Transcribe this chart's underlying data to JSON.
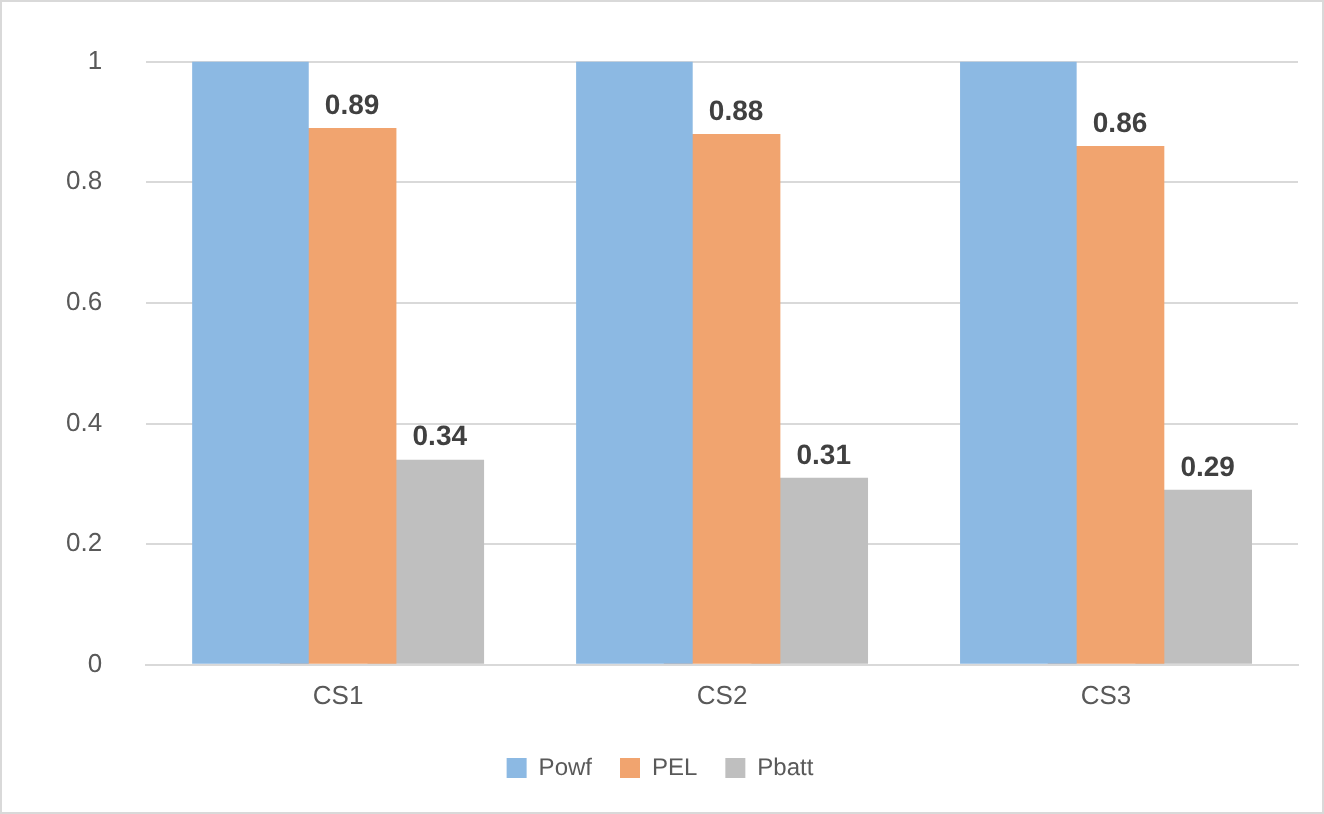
{
  "chart_data": {
    "type": "bar",
    "categories": [
      "CS1",
      "CS2",
      "CS3"
    ],
    "series": [
      {
        "name": "Powf",
        "color": "#8cb9e3",
        "values": [
          1,
          1,
          1
        ]
      },
      {
        "name": "PEL",
        "color": "#f1a46f",
        "values": [
          0.89,
          0.88,
          0.86
        ],
        "value_labels": [
          "0.89",
          "0.88",
          "0.86"
        ]
      },
      {
        "name": "Pbatt",
        "color": "#bfbfbf",
        "values": [
          0.34,
          0.31,
          0.29
        ],
        "value_labels": [
          "0.34",
          "0.31",
          "0.29"
        ]
      }
    ],
    "ylim": [
      0,
      1
    ],
    "yticks": [
      0,
      0.2,
      0.4,
      0.6,
      0.8,
      1
    ],
    "grid": "y",
    "legend": "bottom"
  }
}
